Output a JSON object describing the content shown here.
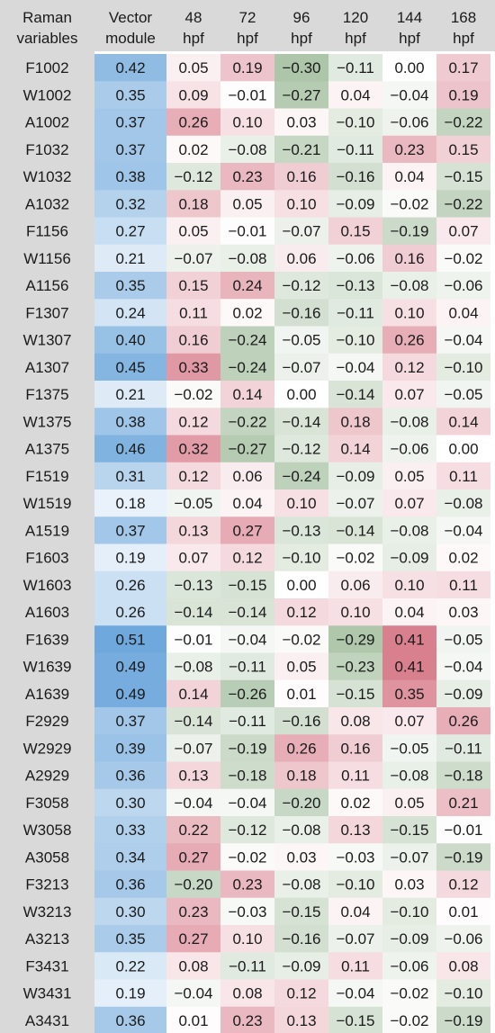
{
  "chart_data": {
    "type": "heatmap",
    "column_headers": [
      {
        "line1": "Raman",
        "line2": "variables"
      },
      {
        "line1": "Vector",
        "line2": "module"
      },
      {
        "line1": "48",
        "line2": "hpf"
      },
      {
        "line1": "72",
        "line2": "hpf"
      },
      {
        "line1": "96",
        "line2": "hpf"
      },
      {
        "line1": "120",
        "line2": "hpf"
      },
      {
        "line1": "144",
        "line2": "hpf"
      },
      {
        "line1": "168",
        "line2": "hpf"
      }
    ],
    "rows": [
      {
        "variable": "F1002",
        "vector_module": "0.42",
        "values": [
          "0.05",
          "0.19",
          "−0.30",
          "−0.11",
          "0.00",
          "0.17"
        ]
      },
      {
        "variable": "W1002",
        "vector_module": "0.35",
        "values": [
          "0.09",
          "−0.01",
          "−0.27",
          "0.04",
          "−0.04",
          "0.19"
        ]
      },
      {
        "variable": "A1002",
        "vector_module": "0.37",
        "values": [
          "0.26",
          "0.10",
          "0.03",
          "−0.10",
          "−0.06",
          "−0.22"
        ]
      },
      {
        "variable": "F1032",
        "vector_module": "0.37",
        "values": [
          "0.02",
          "−0.08",
          "−0.21",
          "−0.11",
          "0.23",
          "0.15"
        ]
      },
      {
        "variable": "W1032",
        "vector_module": "0.38",
        "values": [
          "−0.12",
          "0.23",
          "0.16",
          "−0.16",
          "0.04",
          "−0.15"
        ]
      },
      {
        "variable": "A1032",
        "vector_module": "0.32",
        "values": [
          "0.18",
          "0.05",
          "0.10",
          "−0.09",
          "−0.02",
          "−0.22"
        ]
      },
      {
        "variable": "F1156",
        "vector_module": "0.27",
        "values": [
          "0.05",
          "−0.01",
          "−0.07",
          "0.15",
          "−0.19",
          "0.07"
        ]
      },
      {
        "variable": "W1156",
        "vector_module": "0.21",
        "values": [
          "−0.07",
          "−0.08",
          "0.06",
          "−0.06",
          "0.16",
          "−0.02"
        ]
      },
      {
        "variable": "A1156",
        "vector_module": "0.35",
        "values": [
          "0.15",
          "0.24",
          "−0.12",
          "−0.13",
          "−0.08",
          "−0.06"
        ]
      },
      {
        "variable": "F1307",
        "vector_module": "0.24",
        "values": [
          "0.11",
          "0.02",
          "−0.16",
          "−0.11",
          "0.10",
          "0.04"
        ]
      },
      {
        "variable": "W1307",
        "vector_module": "0.40",
        "values": [
          "0.16",
          "−0.24",
          "−0.05",
          "−0.10",
          "0.26",
          "−0.04"
        ]
      },
      {
        "variable": "A1307",
        "vector_module": "0.45",
        "values": [
          "0.33",
          "−0.24",
          "−0.07",
          "−0.04",
          "0.12",
          "−0.10"
        ]
      },
      {
        "variable": "F1375",
        "vector_module": "0.21",
        "values": [
          "−0.02",
          "0.14",
          "0.00",
          "−0.14",
          "0.07",
          "−0.05"
        ]
      },
      {
        "variable": "W1375",
        "vector_module": "0.38",
        "values": [
          "0.12",
          "−0.22",
          "−0.14",
          "0.18",
          "−0.08",
          "0.14"
        ]
      },
      {
        "variable": "A1375",
        "vector_module": "0.46",
        "values": [
          "0.32",
          "−0.27",
          "−0.12",
          "0.14",
          "−0.06",
          "0.00"
        ]
      },
      {
        "variable": "F1519",
        "vector_module": "0.31",
        "values": [
          "0.12",
          "0.06",
          "−0.24",
          "−0.09",
          "0.05",
          "0.11"
        ]
      },
      {
        "variable": "W1519",
        "vector_module": "0.18",
        "values": [
          "−0.05",
          "0.04",
          "0.10",
          "−0.07",
          "0.07",
          "−0.08"
        ]
      },
      {
        "variable": "A1519",
        "vector_module": "0.37",
        "values": [
          "0.13",
          "0.27",
          "−0.13",
          "−0.14",
          "−0.08",
          "−0.04"
        ]
      },
      {
        "variable": "F1603",
        "vector_module": "0.19",
        "values": [
          "0.07",
          "0.12",
          "−0.10",
          "−0.02",
          "−0.09",
          "0.02"
        ]
      },
      {
        "variable": "W1603",
        "vector_module": "0.26",
        "values": [
          "−0.13",
          "−0.15",
          "0.00",
          "0.06",
          "0.10",
          "0.11"
        ]
      },
      {
        "variable": "A1603",
        "vector_module": "0.26",
        "values": [
          "−0.14",
          "−0.14",
          "0.12",
          "0.10",
          "0.04",
          "0.03"
        ]
      },
      {
        "variable": "F1639",
        "vector_module": "0.51",
        "values": [
          "−0.01",
          "−0.04",
          "−0.02",
          "−0.29",
          "0.41",
          "−0.05"
        ]
      },
      {
        "variable": "W1639",
        "vector_module": "0.49",
        "values": [
          "−0.08",
          "−0.11",
          "0.05",
          "−0.23",
          "0.41",
          "−0.04"
        ]
      },
      {
        "variable": "A1639",
        "vector_module": "0.49",
        "values": [
          "0.14",
          "−0.26",
          "0.01",
          "−0.15",
          "0.35",
          "−0.09"
        ]
      },
      {
        "variable": "F2929",
        "vector_module": "0.37",
        "values": [
          "−0.14",
          "−0.11",
          "−0.16",
          "0.08",
          "0.07",
          "0.26"
        ]
      },
      {
        "variable": "W2929",
        "vector_module": "0.39",
        "values": [
          "−0.07",
          "−0.19",
          "0.26",
          "0.16",
          "−0.05",
          "−0.11"
        ]
      },
      {
        "variable": "A2929",
        "vector_module": "0.36",
        "values": [
          "0.13",
          "−0.18",
          "0.18",
          "0.11",
          "−0.08",
          "−0.18"
        ]
      },
      {
        "variable": "F3058",
        "vector_module": "0.30",
        "values": [
          "−0.04",
          "−0.04",
          "−0.20",
          "0.02",
          "0.05",
          "0.21"
        ]
      },
      {
        "variable": "W3058",
        "vector_module": "0.33",
        "values": [
          "0.22",
          "−0.12",
          "−0.08",
          "0.13",
          "−0.15",
          "−0.01"
        ]
      },
      {
        "variable": "A3058",
        "vector_module": "0.34",
        "values": [
          "0.27",
          "−0.02",
          "0.03",
          "−0.03",
          "−0.07",
          "−0.19"
        ]
      },
      {
        "variable": "F3213",
        "vector_module": "0.36",
        "values": [
          "−0.20",
          "0.23",
          "−0.08",
          "−0.10",
          "0.03",
          "0.12"
        ]
      },
      {
        "variable": "W3213",
        "vector_module": "0.30",
        "values": [
          "0.23",
          "−0.03",
          "−0.15",
          "0.04",
          "−0.10",
          "0.01"
        ]
      },
      {
        "variable": "A3213",
        "vector_module": "0.35",
        "values": [
          "0.27",
          "0.10",
          "−0.16",
          "−0.07",
          "−0.09",
          "−0.06"
        ]
      },
      {
        "variable": "F3431",
        "vector_module": "0.22",
        "values": [
          "0.08",
          "−0.11",
          "−0.09",
          "0.11",
          "−0.06",
          "0.08"
        ]
      },
      {
        "variable": "W3431",
        "vector_module": "0.19",
        "values": [
          "−0.04",
          "0.08",
          "0.12",
          "−0.04",
          "−0.02",
          "−0.10"
        ]
      },
      {
        "variable": "A3431",
        "vector_module": "0.36",
        "values": [
          "0.01",
          "0.23",
          "0.13",
          "−0.15",
          "−0.02",
          "−0.19"
        ]
      }
    ],
    "colors": {
      "label_column_bg": "#d9d9d9",
      "header_bg": "#d9d9d9",
      "vector_module_max": "#6fa8dc",
      "vector_module_min": "#ffffff",
      "positive_max": "#d9808e",
      "negative_max": "#8fb08a",
      "neutral": "#ffffff"
    }
  }
}
